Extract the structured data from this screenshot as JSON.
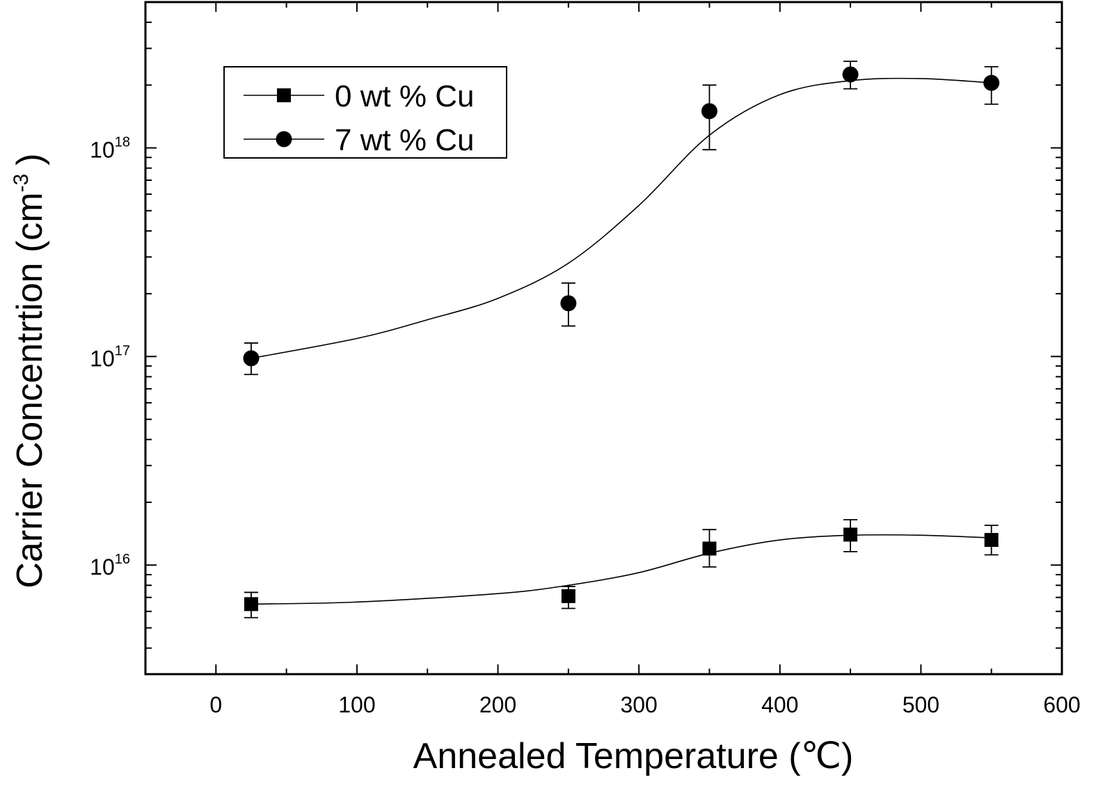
{
  "chart_data": {
    "type": "scatter",
    "xlabel": "Annealed Temperature (℃)",
    "ylabel_main": "Carrier Concentrtion (cm",
    "ylabel_exp": "-3",
    "ylabel_close": ")",
    "xlim": [
      -50,
      600
    ],
    "ylim": [
      3000000000000000.0,
      5e+18
    ],
    "yscale": "log",
    "xticks": [
      0,
      100,
      200,
      300,
      400,
      500,
      600
    ],
    "xtick_labels": [
      "0",
      "100",
      "200",
      "300",
      "400",
      "500",
      "600"
    ],
    "yticks": [
      1e+16,
      1e+17,
      1e+18
    ],
    "ytick_labels": [
      {
        "base": "10",
        "exp": "16"
      },
      {
        "base": "10",
        "exp": "17"
      },
      {
        "base": "10",
        "exp": "18"
      }
    ],
    "grid": false,
    "legend_position": "top-left",
    "series": [
      {
        "name": "0 wt % Cu",
        "marker": "square",
        "color": "#000000",
        "x": [
          25,
          250,
          350,
          450,
          550
        ],
        "y": [
          6500000000000000.0,
          7100000000000000.0,
          1.2e+16,
          1.4e+16,
          1.32e+16
        ],
        "err_low": [
          5600000000000000.0,
          6200000000000000.0,
          9800000000000000.0,
          1.16e+16,
          1.12e+16
        ],
        "err_high": [
          7400000000000000.0,
          7900000000000000.0,
          1.48e+16,
          1.65e+16,
          1.55e+16
        ],
        "fit": [
          [
            25,
            6500000000000000.0
          ],
          [
            100,
            6650000000000000.0
          ],
          [
            200,
            7300000000000000.0
          ],
          [
            250,
            8000000000000000.0
          ],
          [
            300,
            9200000000000000.0
          ],
          [
            350,
            1.14e+16
          ],
          [
            400,
            1.32e+16
          ],
          [
            450,
            1.39e+16
          ],
          [
            500,
            1.39e+16
          ],
          [
            550,
            1.35e+16
          ]
        ]
      },
      {
        "name": "7 wt % Cu",
        "marker": "circle",
        "color": "#000000",
        "x": [
          25,
          250,
          350,
          450,
          550
        ],
        "y": [
          9.8e+16,
          1.8e+17,
          1.5e+18,
          2.25e+18,
          2.05e+18
        ],
        "err_low": [
          8.2e+16,
          1.4e+17,
          9.8e+17,
          1.92e+18,
          1.62e+18
        ],
        "err_high": [
          1.16e+17,
          2.25e+17,
          2e+18,
          2.6e+18,
          2.45e+18
        ],
        "fit": [
          [
            25,
            9.8e+16
          ],
          [
            100,
            1.22e+17
          ],
          [
            150,
            1.5e+17
          ],
          [
            200,
            1.9e+17
          ],
          [
            250,
            2.8e+17
          ],
          [
            300,
            5.3e+17
          ],
          [
            350,
            1.15e+18
          ],
          [
            400,
            1.8e+18
          ],
          [
            450,
            2.1e+18
          ],
          [
            500,
            2.15e+18
          ],
          [
            550,
            2.05e+18
          ]
        ]
      }
    ]
  }
}
